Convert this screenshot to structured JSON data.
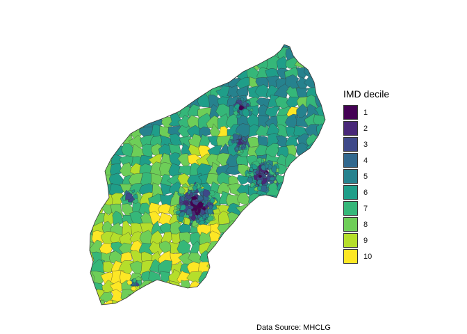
{
  "map": {
    "legend_title": "IMD decile",
    "legend": [
      {
        "label": "1",
        "color": "#440154"
      },
      {
        "label": "2",
        "color": "#482878"
      },
      {
        "label": "3",
        "color": "#3e4989"
      },
      {
        "label": "4",
        "color": "#31688e"
      },
      {
        "label": "5",
        "color": "#26828e"
      },
      {
        "label": "6",
        "color": "#1f9e89"
      },
      {
        "label": "7",
        "color": "#35b779"
      },
      {
        "label": "8",
        "color": "#6ece58"
      },
      {
        "label": "9",
        "color": "#b5de2b"
      },
      {
        "label": "10",
        "color": "#fde725"
      }
    ],
    "caption": "Data Source: MHCLG",
    "border_color": "#333333"
  }
}
